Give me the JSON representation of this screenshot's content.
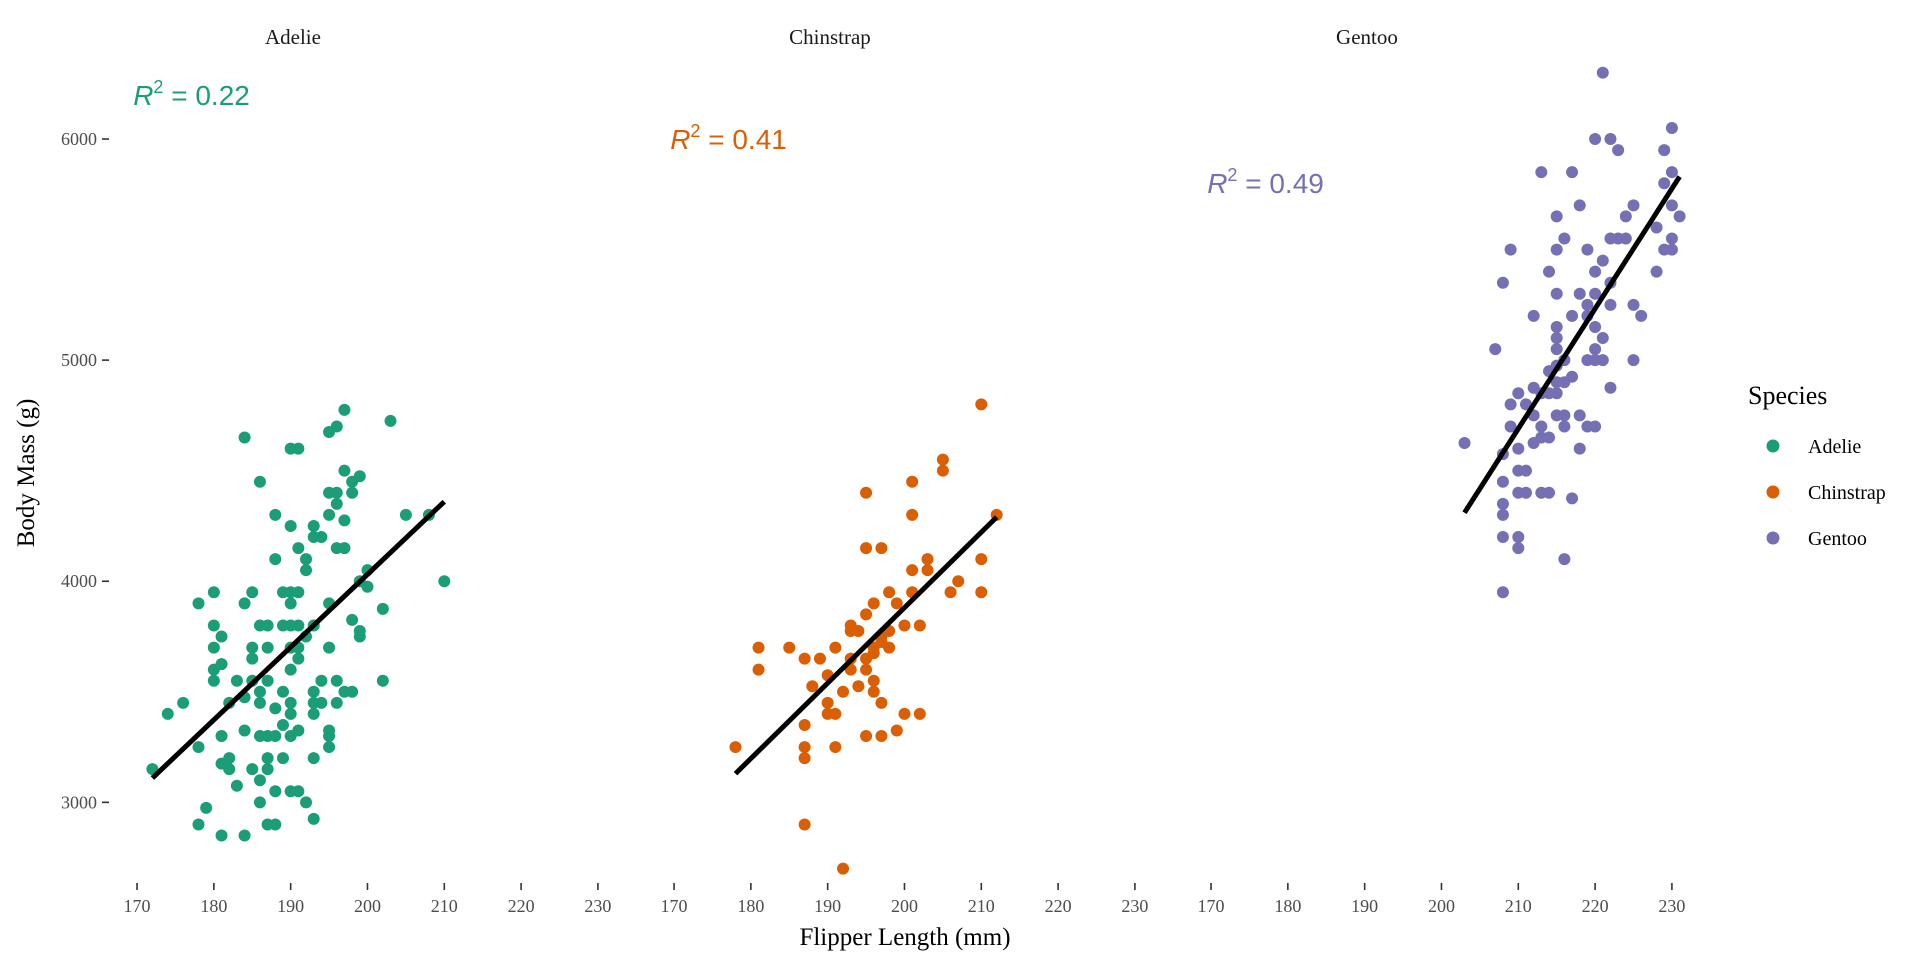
{
  "chart_data": {
    "type": "scatter",
    "xlabel": "Flipper Length (mm)",
    "ylabel": "Body Mass (g)",
    "xlim": [
      167,
      236
    ],
    "ylim": [
      2590,
      6380
    ],
    "x_ticks": [
      170,
      180,
      190,
      200,
      210,
      220,
      230
    ],
    "y_ticks": [
      3000,
      4000,
      5000,
      6000
    ],
    "grid": false,
    "legend": {
      "title": "Species",
      "position": "right",
      "entries": [
        "Adelie",
        "Chinstrap",
        "Gentoo"
      ]
    },
    "panels": [
      {
        "name": "Adelie",
        "color": "#1b9e77",
        "r2_prefix": "R",
        "r2_sup": "2",
        "r2_value": " = 0.22",
        "r2_y": 6200,
        "fit": {
          "x": [
            172,
            210
          ],
          "y": [
            3110,
            4360
          ]
        },
        "points": [
          [
            172,
            3150
          ],
          [
            174,
            3400
          ],
          [
            176,
            3450
          ],
          [
            178,
            2900
          ],
          [
            178,
            3250
          ],
          [
            178,
            3900
          ],
          [
            179,
            2975
          ],
          [
            180,
            3550
          ],
          [
            180,
            3600
          ],
          [
            180,
            3700
          ],
          [
            180,
            3800
          ],
          [
            180,
            3950
          ],
          [
            181,
            2850
          ],
          [
            181,
            3175
          ],
          [
            181,
            3300
          ],
          [
            181,
            3625
          ],
          [
            181,
            3750
          ],
          [
            182,
            3150
          ],
          [
            182,
            3200
          ],
          [
            182,
            3450
          ],
          [
            183,
            3075
          ],
          [
            183,
            3550
          ],
          [
            184,
            2850
          ],
          [
            184,
            3325
          ],
          [
            184,
            3475
          ],
          [
            184,
            3900
          ],
          [
            184,
            4650
          ],
          [
            185,
            3150
          ],
          [
            185,
            3550
          ],
          [
            185,
            3650
          ],
          [
            185,
            3700
          ],
          [
            185,
            3950
          ],
          [
            186,
            3000
          ],
          [
            186,
            3100
          ],
          [
            186,
            3300
          ],
          [
            186,
            3450
          ],
          [
            186,
            3500
          ],
          [
            186,
            3800
          ],
          [
            186,
            4450
          ],
          [
            187,
            2900
          ],
          [
            187,
            3150
          ],
          [
            187,
            3200
          ],
          [
            187,
            3300
          ],
          [
            187,
            3550
          ],
          [
            187,
            3700
          ],
          [
            187,
            3800
          ],
          [
            188,
            2900
          ],
          [
            188,
            3050
          ],
          [
            188,
            3300
          ],
          [
            188,
            3425
          ],
          [
            188,
            4100
          ],
          [
            188,
            4300
          ],
          [
            189,
            3200
          ],
          [
            189,
            3350
          ],
          [
            189,
            3500
          ],
          [
            189,
            3800
          ],
          [
            189,
            3950
          ],
          [
            190,
            3050
          ],
          [
            190,
            3300
          ],
          [
            190,
            3400
          ],
          [
            190,
            3450
          ],
          [
            190,
            3600
          ],
          [
            190,
            3700
          ],
          [
            190,
            3800
          ],
          [
            190,
            3900
          ],
          [
            190,
            3950
          ],
          [
            190,
            4250
          ],
          [
            190,
            4600
          ],
          [
            191,
            3050
          ],
          [
            191,
            3325
          ],
          [
            191,
            3650
          ],
          [
            191,
            3700
          ],
          [
            191,
            3800
          ],
          [
            191,
            3950
          ],
          [
            191,
            4150
          ],
          [
            191,
            4600
          ],
          [
            192,
            3000
          ],
          [
            192,
            3750
          ],
          [
            192,
            4050
          ],
          [
            192,
            4100
          ],
          [
            193,
            2925
          ],
          [
            193,
            3200
          ],
          [
            193,
            3400
          ],
          [
            193,
            3450
          ],
          [
            193,
            3500
          ],
          [
            193,
            3800
          ],
          [
            193,
            4200
          ],
          [
            193,
            4250
          ],
          [
            194,
            3450
          ],
          [
            194,
            3550
          ],
          [
            194,
            4200
          ],
          [
            195,
            3250
          ],
          [
            195,
            3300
          ],
          [
            195,
            3325
          ],
          [
            195,
            3700
          ],
          [
            195,
            3900
          ],
          [
            195,
            4300
          ],
          [
            195,
            4400
          ],
          [
            195,
            4675
          ],
          [
            196,
            3450
          ],
          [
            196,
            3550
          ],
          [
            196,
            4150
          ],
          [
            196,
            4350
          ],
          [
            196,
            4400
          ],
          [
            196,
            4700
          ],
          [
            197,
            3500
          ],
          [
            197,
            4150
          ],
          [
            197,
            4275
          ],
          [
            197,
            4500
          ],
          [
            197,
            4775
          ],
          [
            198,
            3500
          ],
          [
            198,
            3825
          ],
          [
            198,
            4400
          ],
          [
            198,
            4450
          ],
          [
            199,
            3750
          ],
          [
            199,
            3775
          ],
          [
            199,
            4000
          ],
          [
            199,
            4475
          ],
          [
            200,
            3975
          ],
          [
            200,
            4050
          ],
          [
            202,
            3875
          ],
          [
            202,
            3550
          ],
          [
            203,
            4725
          ],
          [
            205,
            4300
          ],
          [
            208,
            4300
          ],
          [
            210,
            4000
          ]
        ]
      },
      {
        "name": "Chinstrap",
        "color": "#d95f02",
        "r2_prefix": "R",
        "r2_sup": "2",
        "r2_value": " = 0.41",
        "r2_y": 6000,
        "fit": {
          "x": [
            178,
            212
          ],
          "y": [
            3130,
            4290
          ]
        },
        "points": [
          [
            178,
            3250
          ],
          [
            181,
            3700
          ],
          [
            181,
            3600
          ],
          [
            185,
            3700
          ],
          [
            187,
            2900
          ],
          [
            187,
            3200
          ],
          [
            187,
            3250
          ],
          [
            187,
            3350
          ],
          [
            187,
            3650
          ],
          [
            188,
            3525
          ],
          [
            189,
            3650
          ],
          [
            190,
            3450
          ],
          [
            190,
            3400
          ],
          [
            190,
            3575
          ],
          [
            191,
            3700
          ],
          [
            191,
            3400
          ],
          [
            191,
            3250
          ],
          [
            192,
            3500
          ],
          [
            192,
            2700
          ],
          [
            193,
            3600
          ],
          [
            193,
            3800
          ],
          [
            193,
            3650
          ],
          [
            193,
            3775
          ],
          [
            194,
            3775
          ],
          [
            194,
            3525
          ],
          [
            195,
            3300
          ],
          [
            195,
            3600
          ],
          [
            195,
            3650
          ],
          [
            195,
            3850
          ],
          [
            195,
            4150
          ],
          [
            195,
            4400
          ],
          [
            196,
            3550
          ],
          [
            196,
            3500
          ],
          [
            196,
            3675
          ],
          [
            196,
            3700
          ],
          [
            196,
            3900
          ],
          [
            197,
            3300
          ],
          [
            197,
            3450
          ],
          [
            197,
            3725
          ],
          [
            197,
            3750
          ],
          [
            197,
            4150
          ],
          [
            198,
            3700
          ],
          [
            198,
            3775
          ],
          [
            198,
            3950
          ],
          [
            199,
            3325
          ],
          [
            199,
            3900
          ],
          [
            200,
            3400
          ],
          [
            200,
            3800
          ],
          [
            201,
            3950
          ],
          [
            201,
            4050
          ],
          [
            201,
            4300
          ],
          [
            201,
            4450
          ],
          [
            202,
            3800
          ],
          [
            202,
            3400
          ],
          [
            203,
            4050
          ],
          [
            203,
            4100
          ],
          [
            205,
            4500
          ],
          [
            205,
            4550
          ],
          [
            206,
            3950
          ],
          [
            207,
            4000
          ],
          [
            210,
            3950
          ],
          [
            210,
            4100
          ],
          [
            210,
            4800
          ],
          [
            212,
            4300
          ]
        ]
      },
      {
        "name": "Gentoo",
        "color": "#7570b3",
        "r2_prefix": "R",
        "r2_sup": "2",
        "r2_value": " = 0.49",
        "r2_y": 5800,
        "fit": {
          "x": [
            203,
            231
          ],
          "y": [
            4310,
            5830
          ]
        },
        "points": [
          [
            203,
            4625
          ],
          [
            207,
            5050
          ],
          [
            208,
            3950
          ],
          [
            208,
            4200
          ],
          [
            208,
            4300
          ],
          [
            208,
            4350
          ],
          [
            208,
            4450
          ],
          [
            208,
            4575
          ],
          [
            208,
            5350
          ],
          [
            209,
            4700
          ],
          [
            209,
            4800
          ],
          [
            209,
            5500
          ],
          [
            210,
            4150
          ],
          [
            210,
            4200
          ],
          [
            210,
            4400
          ],
          [
            210,
            4500
          ],
          [
            210,
            4600
          ],
          [
            210,
            4850
          ],
          [
            211,
            4400
          ],
          [
            211,
            4500
          ],
          [
            211,
            4800
          ],
          [
            212,
            4625
          ],
          [
            212,
            4750
          ],
          [
            212,
            4875
          ],
          [
            212,
            5200
          ],
          [
            213,
            4400
          ],
          [
            213,
            4650
          ],
          [
            213,
            4700
          ],
          [
            213,
            4850
          ],
          [
            213,
            5850
          ],
          [
            214,
            4400
          ],
          [
            214,
            4650
          ],
          [
            214,
            4850
          ],
          [
            214,
            4950
          ],
          [
            214,
            5400
          ],
          [
            215,
            4750
          ],
          [
            215,
            4850
          ],
          [
            215,
            4900
          ],
          [
            215,
            4975
          ],
          [
            215,
            5050
          ],
          [
            215,
            5100
          ],
          [
            215,
            5150
          ],
          [
            215,
            5300
          ],
          [
            215,
            5500
          ],
          [
            215,
            5650
          ],
          [
            216,
            4100
          ],
          [
            216,
            4700
          ],
          [
            216,
            4750
          ],
          [
            216,
            4900
          ],
          [
            216,
            5000
          ],
          [
            216,
            5550
          ],
          [
            217,
            4375
          ],
          [
            217,
            4925
          ],
          [
            217,
            5200
          ],
          [
            217,
            5850
          ],
          [
            218,
            4600
          ],
          [
            218,
            4750
          ],
          [
            218,
            5300
          ],
          [
            218,
            5700
          ],
          [
            219,
            4700
          ],
          [
            219,
            5000
          ],
          [
            219,
            5250
          ],
          [
            219,
            5500
          ],
          [
            219,
            5200
          ],
          [
            220,
            4700
          ],
          [
            220,
            5000
          ],
          [
            220,
            5050
          ],
          [
            220,
            5150
          ],
          [
            220,
            5300
          ],
          [
            220,
            5400
          ],
          [
            220,
            6000
          ],
          [
            221,
            5000
          ],
          [
            221,
            5100
          ],
          [
            221,
            5450
          ],
          [
            221,
            6300
          ],
          [
            222,
            4875
          ],
          [
            222,
            5250
          ],
          [
            222,
            5350
          ],
          [
            222,
            5550
          ],
          [
            222,
            6000
          ],
          [
            223,
            5550
          ],
          [
            223,
            5950
          ],
          [
            224,
            5550
          ],
          [
            224,
            5650
          ],
          [
            225,
            5000
          ],
          [
            225,
            5250
          ],
          [
            225,
            5700
          ],
          [
            226,
            5200
          ],
          [
            228,
            5400
          ],
          [
            228,
            5600
          ],
          [
            229,
            5500
          ],
          [
            229,
            5800
          ],
          [
            229,
            5950
          ],
          [
            230,
            5500
          ],
          [
            230,
            5550
          ],
          [
            230,
            5700
          ],
          [
            230,
            5850
          ],
          [
            230,
            6050
          ],
          [
            231,
            5650
          ]
        ]
      }
    ]
  }
}
